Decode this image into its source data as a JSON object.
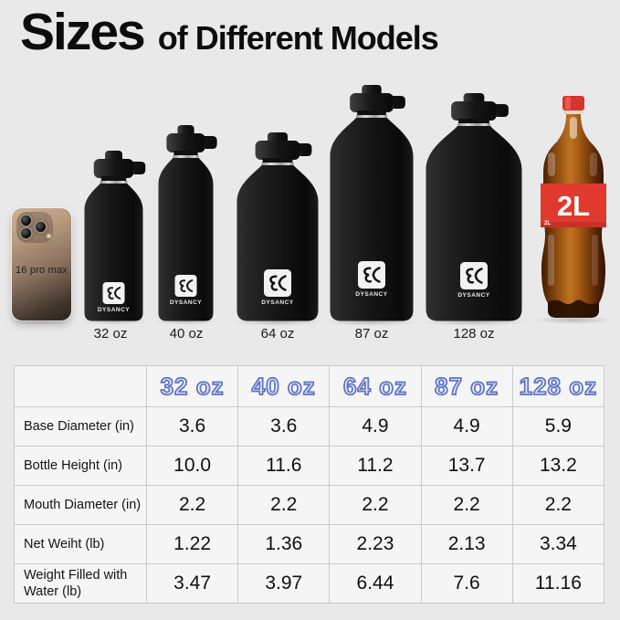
{
  "title": {
    "main": "Sizes",
    "sub": "of Different Models"
  },
  "brand": "DYSANCY",
  "scene": {
    "phone_label": "16 pro max",
    "cola_label": "2L",
    "bottle_labels": [
      "32 oz",
      "40 oz",
      "64 oz",
      "87 oz",
      "128 oz"
    ]
  },
  "colors": {
    "background": "#e9e9e9",
    "table_cell": "#f5f5f6",
    "table_border": "#c9c9c9",
    "header_fill": "#e3e9f8",
    "header_stroke": "#5f72c0",
    "bottle_black": "#141414",
    "cola_label_red": "#e2392e",
    "cola_cap_red": "#d5342a",
    "text": "#111111"
  },
  "chart_data": {
    "type": "table",
    "title": "Sizes of Different Models",
    "columns": [
      "32 oz",
      "40 oz",
      "64 oz",
      "87 oz",
      "128 oz"
    ],
    "rows": [
      {
        "label": "Base Diameter (in)",
        "values": [
          "3.6",
          "3.6",
          "4.9",
          "4.9",
          "5.9"
        ]
      },
      {
        "label": "Bottle Height (in)",
        "values": [
          "10.0",
          "11.6",
          "11.2",
          "13.7",
          "13.2"
        ]
      },
      {
        "label": "Mouth Diameter (in)",
        "values": [
          "2.2",
          "2.2",
          "2.2",
          "2.2",
          "2.2"
        ]
      },
      {
        "label": "Net Weiht (lb)",
        "values": [
          "1.22",
          "1.36",
          "2.23",
          "2.13",
          "3.34"
        ]
      },
      {
        "label": "Weight Filled with Water (lb)",
        "values": [
          "3.47",
          "3.97",
          "6.44",
          "7.6",
          "11.16"
        ]
      }
    ]
  }
}
